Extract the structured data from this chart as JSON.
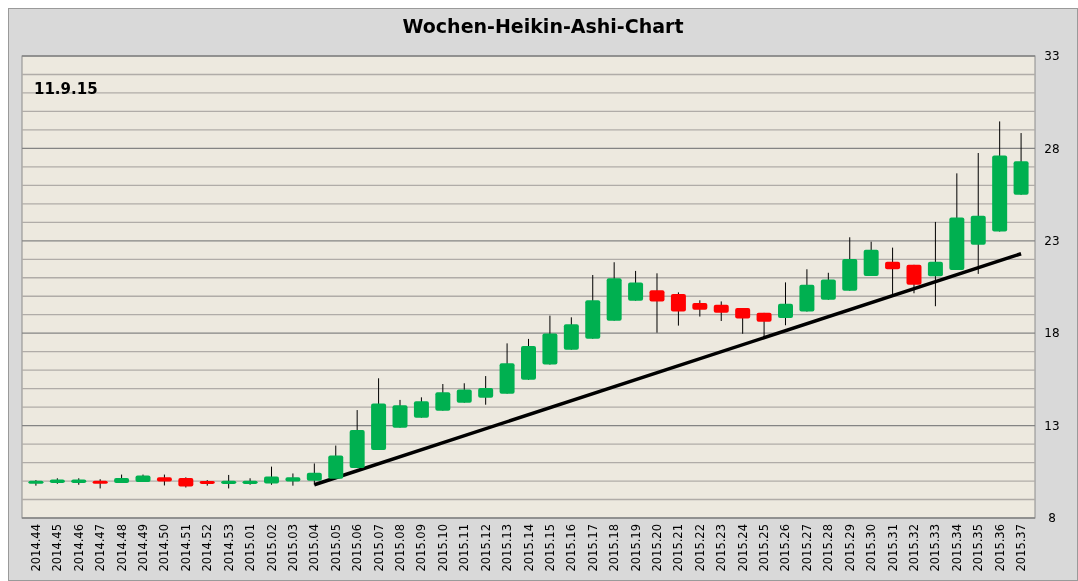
{
  "chart_data": {
    "type": "candlestick",
    "title": "Wochen-Heikin-Ashi-Chart",
    "annotations": [
      "11.9.15"
    ],
    "categories": [
      "2014.44",
      "2014.45",
      "2014.46",
      "2014.47",
      "2014.48",
      "2014.49",
      "2014.50",
      "2014.51",
      "2014.52",
      "2014.53",
      "2015.01",
      "2015.02",
      "2015.03",
      "2015.04",
      "2015.05",
      "2015.06",
      "2015.07",
      "2015.08",
      "2015.09",
      "2015.10",
      "2015.11",
      "2015.12",
      "2015.13",
      "2015.14",
      "2015.15",
      "2015.16",
      "2015.17",
      "2015.18",
      "2015.19",
      "2015.20",
      "2015.21",
      "2015.22",
      "2015.23",
      "2015.24",
      "2015.25",
      "2015.26",
      "2015.27",
      "2015.28",
      "2015.29",
      "2015.30",
      "2015.31",
      "2015.32",
      "2015.33",
      "2015.34",
      "2015.35",
      "2015.36",
      "2015.37"
    ],
    "ohlc": [
      [
        9.85,
        10.05,
        9.75,
        10.02
      ],
      [
        9.9,
        10.15,
        9.85,
        10.08
      ],
      [
        9.9,
        10.15,
        9.8,
        10.08
      ],
      [
        10.02,
        10.1,
        9.6,
        9.85
      ],
      [
        9.9,
        10.35,
        9.9,
        10.17
      ],
      [
        9.95,
        10.35,
        9.95,
        10.3
      ],
      [
        10.2,
        10.35,
        9.76,
        9.98
      ],
      [
        10.17,
        10.2,
        9.65,
        9.7
      ],
      [
        10.0,
        10.05,
        9.75,
        9.84
      ],
      [
        9.84,
        10.33,
        9.6,
        10.02
      ],
      [
        9.84,
        10.15,
        9.8,
        10.02
      ],
      [
        9.87,
        10.78,
        9.8,
        10.24
      ],
      [
        9.98,
        10.41,
        9.75,
        10.2
      ],
      [
        10.02,
        10.95,
        9.8,
        10.45
      ],
      [
        10.13,
        11.92,
        10.1,
        11.38
      ],
      [
        10.71,
        13.84,
        10.7,
        12.76
      ],
      [
        11.68,
        15.56,
        11.68,
        14.2
      ],
      [
        12.89,
        14.39,
        12.89,
        14.1
      ],
      [
        13.43,
        14.53,
        13.43,
        14.32
      ],
      [
        13.81,
        15.25,
        13.81,
        14.8
      ],
      [
        14.24,
        15.29,
        14.24,
        14.96
      ],
      [
        14.51,
        15.68,
        14.13,
        15.04
      ],
      [
        14.73,
        17.45,
        14.73,
        16.37
      ],
      [
        15.48,
        17.69,
        15.48,
        17.31
      ],
      [
        16.3,
        18.95,
        16.3,
        17.99
      ],
      [
        17.11,
        18.86,
        17.11,
        18.48
      ],
      [
        17.7,
        21.15,
        17.7,
        19.78
      ],
      [
        18.68,
        21.84,
        18.68,
        20.97
      ],
      [
        19.76,
        21.37,
        19.76,
        20.75
      ],
      [
        20.32,
        21.24,
        18.03,
        19.71
      ],
      [
        20.12,
        20.21,
        18.41,
        19.17
      ],
      [
        19.64,
        19.78,
        18.9,
        19.27
      ],
      [
        19.54,
        19.72,
        18.66,
        19.1
      ],
      [
        19.36,
        19.36,
        17.97,
        18.79
      ],
      [
        19.1,
        19.1,
        17.72,
        18.62
      ],
      [
        18.82,
        20.75,
        18.43,
        19.59
      ],
      [
        19.17,
        21.46,
        19.17,
        20.62
      ],
      [
        19.81,
        21.27,
        19.81,
        20.9
      ],
      [
        20.3,
        23.19,
        20.3,
        22.02
      ],
      [
        21.1,
        22.95,
        21.1,
        22.52
      ],
      [
        21.87,
        22.63,
        19.97,
        21.46
      ],
      [
        21.7,
        21.7,
        20.16,
        20.62
      ],
      [
        21.08,
        24.02,
        19.46,
        21.87
      ],
      [
        21.42,
        26.65,
        21.42,
        24.26
      ],
      [
        22.78,
        27.75,
        21.21,
        24.35
      ],
      [
        23.5,
        29.46,
        23.5,
        27.62
      ],
      [
        25.49,
        28.83,
        25.49,
        27.3
      ]
    ],
    "colors": [
      "#00b050",
      "#00b050",
      "#00b050",
      "#ff0000",
      "#00b050",
      "#00b050",
      "#ff0000",
      "#ff0000",
      "#ff0000",
      "#00b050",
      "#00b050",
      "#00b050",
      "#00b050",
      "#00b050",
      "#00b050",
      "#00b050",
      "#00b050",
      "#00b050",
      "#00b050",
      "#00b050",
      "#00b050",
      "#00b050",
      "#00b050",
      "#00b050",
      "#00b050",
      "#00b050",
      "#00b050",
      "#00b050",
      "#00b050",
      "#ff0000",
      "#ff0000",
      "#ff0000",
      "#ff0000",
      "#ff0000",
      "#ff0000",
      "#00b050",
      "#00b050",
      "#00b050",
      "#00b050",
      "#00b050",
      "#ff0000",
      "#ff0000",
      "#00b050",
      "#00b050",
      "#00b050",
      "#00b050",
      "#00b050"
    ],
    "series": [
      {
        "type": "line",
        "x": [
          "2015.04",
          "2015.37"
        ],
        "values": [
          9.8,
          22.3
        ],
        "color": "#000000"
      }
    ],
    "ylim": [
      8,
      33
    ],
    "yticks": [
      8,
      {
        "value": 9,
        "label": null
      },
      {
        "value": 10,
        "label": null
      },
      {
        "value": 11,
        "label": null
      },
      {
        "value": 12,
        "label": null
      },
      13,
      {
        "value": 14,
        "label": null
      },
      {
        "value": 15,
        "label": null
      },
      {
        "value": 16,
        "label": null
      },
      {
        "value": 17,
        "label": null
      },
      18,
      {
        "value": 19,
        "label": null
      },
      {
        "value": 20,
        "label": null
      },
      {
        "value": 21,
        "label": null
      },
      {
        "value": 22,
        "label": null
      },
      23,
      {
        "value": 24,
        "label": null
      },
      {
        "value": 25,
        "label": null
      },
      {
        "value": 26,
        "label": null
      },
      {
        "value": 27,
        "label": null
      },
      28,
      {
        "value": 29,
        "label": null
      },
      {
        "value": 30,
        "label": null
      },
      {
        "value": 31,
        "label": null
      },
      {
        "value": 32,
        "label": null
      },
      33
    ],
    "grid": "y"
  }
}
